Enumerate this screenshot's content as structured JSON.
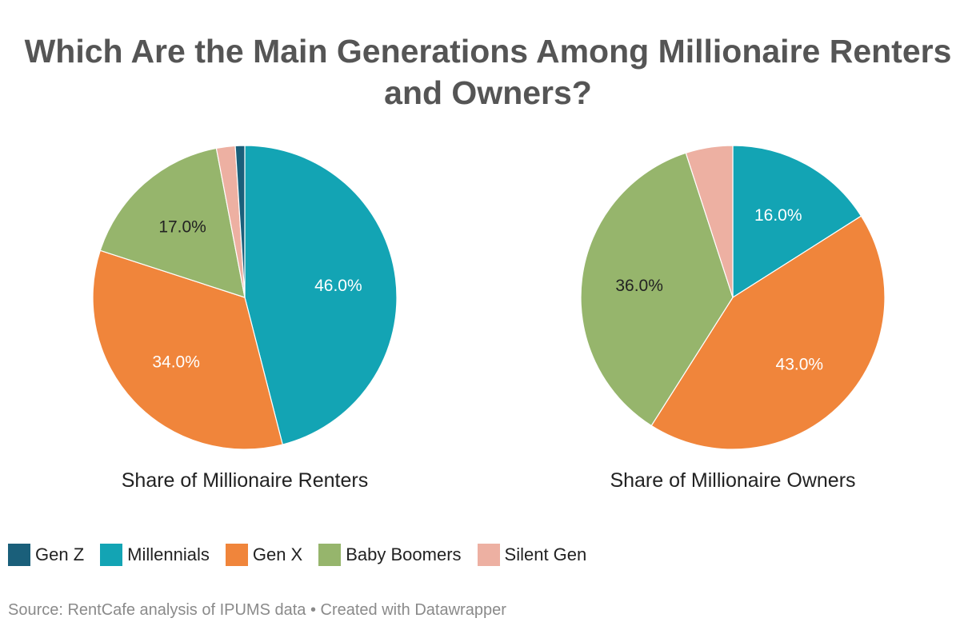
{
  "title_line1": "Which Are the Main Generations Among Millionaire Renters",
  "title_line2": "and Owners?",
  "source": "Source: RentCafe analysis of IPUMS data • Created with Datawrapper",
  "colors": {
    "Gen Z": "#1a5f7a",
    "Millennials": "#13a4b4",
    "Gen X": "#f0853b",
    "Baby Boomers": "#96b56c",
    "Silent Gen": "#edb0a2"
  },
  "legend": [
    "Gen Z",
    "Millennials",
    "Gen X",
    "Baby Boomers",
    "Silent Gen"
  ],
  "chart_data": [
    {
      "type": "pie",
      "title": "Share of Millionaire Renters",
      "categories": [
        "Gen Z",
        "Millennials",
        "Gen X",
        "Baby Boomers",
        "Silent Gen"
      ],
      "values": [
        1,
        46,
        34,
        17,
        2
      ],
      "data_labels": [
        "",
        "46.0%",
        "34.0%",
        "17.0%",
        ""
      ]
    },
    {
      "type": "pie",
      "title": "Share of Millionaire Owners",
      "categories": [
        "Gen Z",
        "Millennials",
        "Gen X",
        "Baby Boomers",
        "Silent Gen"
      ],
      "values": [
        0,
        16,
        43,
        36,
        5
      ],
      "data_labels": [
        "",
        "16.0%",
        "43.0%",
        "36.0%",
        ""
      ]
    }
  ]
}
